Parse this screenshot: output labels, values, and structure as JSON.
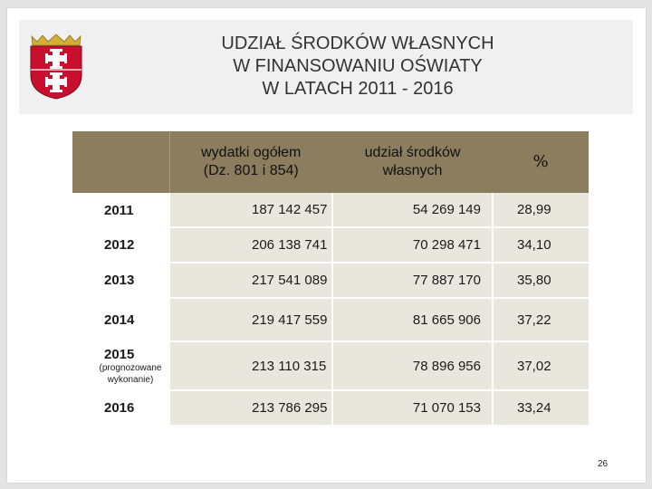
{
  "title": {
    "line1": "UDZIAŁ ŚRODKÓW WŁASNYCH",
    "line2": "W FINANSOWANIU OŚWIATY",
    "line3": "W LATACH 2011 - 2016"
  },
  "logo": {
    "icon": "coat-of-arms-icon",
    "colors": {
      "shield": "#c8102e",
      "cross": "#ffffff",
      "crown": "#d4af37"
    }
  },
  "table": {
    "headers": {
      "col0": "",
      "col1_line1": "wydatki ogółem",
      "col1_line2": "(Dz. 801 i 854)",
      "col2_line1": "udział środków",
      "col2_line2": "własnych",
      "col3": "%"
    },
    "rows": [
      {
        "year": "2011",
        "note": "",
        "total": "187 142 457",
        "own": "54 269 149",
        "pct": "28,99"
      },
      {
        "year": "2012",
        "note": "",
        "total": "206 138 741",
        "own": "70 298 471",
        "pct": "34,10"
      },
      {
        "year": "2013",
        "note": "",
        "total": "217 541 089",
        "own": "77 887 170",
        "pct": "35,80"
      },
      {
        "year": "2014",
        "note": "",
        "total": "219 417 559",
        "own": "81 665 906",
        "pct": "37,22"
      },
      {
        "year": "2015",
        "note": "(prognozowane wykonanie)",
        "total": "213 110 315",
        "own": "78 896 956",
        "pct": "37,02"
      },
      {
        "year": "2016",
        "note": "",
        "total": "213 786 295",
        "own": "71 070 153",
        "pct": "33,24"
      }
    ],
    "colors": {
      "header_bg": "#8c7d5e",
      "cell_bg": "#e9e6de"
    }
  },
  "page_number": "26"
}
